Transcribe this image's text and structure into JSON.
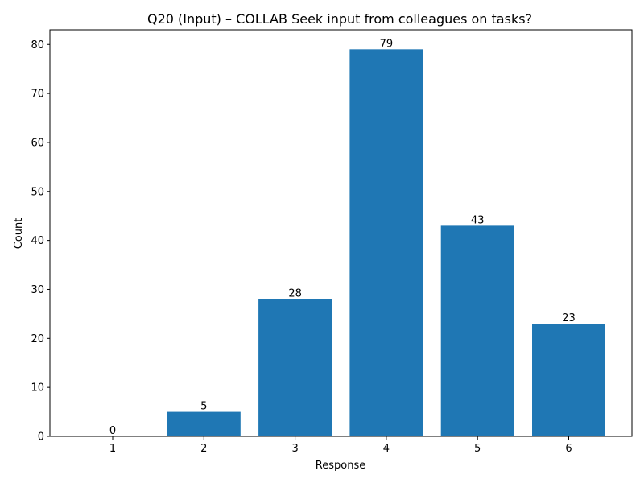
{
  "chart_data": {
    "type": "bar",
    "title": "Q20 (Input) – COLLAB Seek input from colleagues on tasks?",
    "xlabel": "Response",
    "ylabel": "Count",
    "categories": [
      "1",
      "2",
      "3",
      "4",
      "5",
      "6"
    ],
    "values": [
      0,
      5,
      28,
      79,
      43,
      23
    ],
    "ylim": [
      0,
      83
    ],
    "yticks": [
      0,
      10,
      20,
      30,
      40,
      50,
      60,
      70,
      80
    ],
    "bar_color": "#1f77b4",
    "grid": false,
    "legend": "none"
  }
}
